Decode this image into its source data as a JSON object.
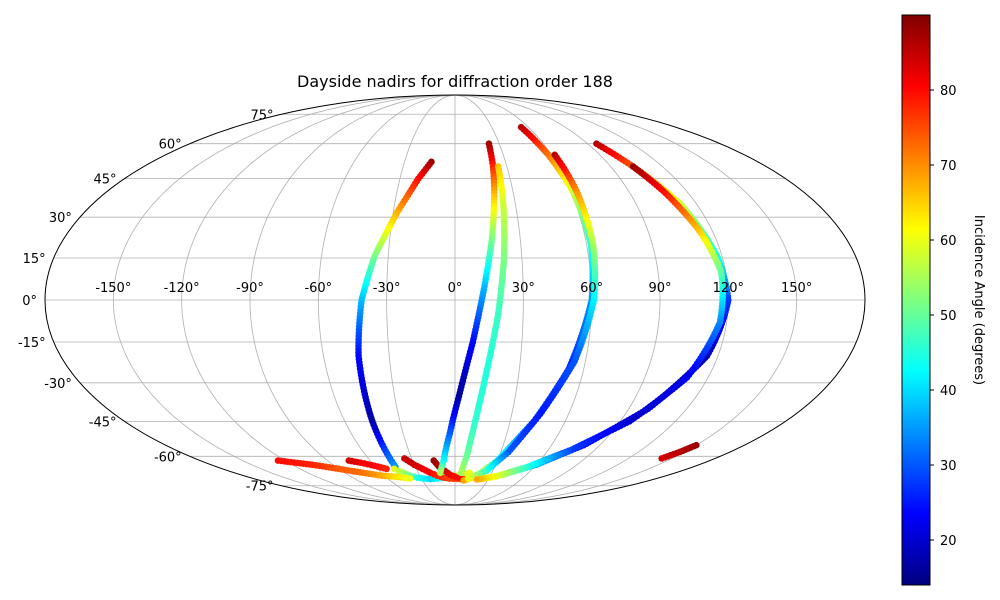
{
  "chart_data": {
    "type": "scatter",
    "projection": "mollweide",
    "title": "Dayside nadirs for diffraction order 188",
    "xlabel": "",
    "ylabel": "",
    "grid": true,
    "lon_tick_labels": [
      "-150°",
      "-120°",
      "-90°",
      "-60°",
      "-30°",
      "0°",
      "30°",
      "60°",
      "90°",
      "120°",
      "150°"
    ],
    "lat_tick_labels": [
      "-75°",
      "-60°",
      "-45°",
      "-30°",
      "-15°",
      "0°",
      "15°",
      "30°",
      "45°",
      "60°",
      "75°"
    ],
    "colorbar": {
      "label": "Incidence Angle (degrees)",
      "range": [
        14,
        90
      ],
      "ticks": [
        20,
        30,
        40,
        50,
        60,
        70,
        80
      ],
      "colormap": "jet"
    },
    "tracks": [
      {
        "points": [
          [
            -14,
            52,
            88
          ],
          [
            -20,
            45,
            80
          ],
          [
            -28,
            32,
            68
          ],
          [
            -36,
            16,
            52
          ],
          [
            -41,
            0,
            38
          ],
          [
            -44,
            -20,
            24
          ],
          [
            -45,
            -45,
            17
          ],
          [
            -45,
            -65,
            35
          ]
        ]
      },
      {
        "points": [
          [
            -47,
            -66,
            60
          ],
          [
            -45,
            -67,
            58
          ],
          [
            -42,
            -68,
            55
          ],
          [
            -38,
            -69.5,
            50
          ],
          [
            -33,
            -70.5,
            45
          ],
          [
            -28,
            -71,
            42
          ],
          [
            -22,
            -71.3,
            40
          ],
          [
            -16,
            -71,
            42
          ],
          [
            -10,
            -70.5,
            45
          ],
          [
            -4,
            -70,
            50
          ],
          [
            0,
            -69.5,
            55
          ],
          [
            6,
            -69,
            58
          ],
          [
            12,
            -68,
            60
          ]
        ]
      },
      {
        "points": [
          [
            -125,
            -62,
            80
          ],
          [
            -105,
            -64,
            78
          ],
          [
            -90,
            -66,
            74
          ],
          [
            -75,
            -68,
            72
          ],
          [
            -62,
            -69.5,
            68
          ],
          [
            -52,
            -70,
            64
          ],
          [
            -45,
            -70.5,
            62
          ],
          [
            -40,
            -71,
            60
          ]
        ]
      },
      {
        "points": [
          [
            -75,
            -62,
            84
          ],
          [
            -68,
            -63,
            82
          ],
          [
            -60,
            -64.5,
            80
          ],
          [
            -53,
            -66,
            78
          ]
        ]
      },
      {
        "points": [
          [
            -35,
            -61,
            85
          ],
          [
            -30,
            -64,
            84
          ],
          [
            -25,
            -66,
            82
          ],
          [
            -20,
            -68,
            80
          ],
          [
            -15,
            -69.5,
            78
          ],
          [
            -10,
            -70.5,
            77
          ],
          [
            -5,
            -71,
            76
          ],
          [
            2,
            -71.2,
            76
          ],
          [
            8,
            -71.3,
            76
          ]
        ]
      },
      {
        "points": [
          [
            -15,
            -62,
            88
          ],
          [
            -12,
            -65,
            86
          ],
          [
            -8,
            -67,
            84
          ],
          [
            -4,
            -69,
            82
          ],
          [
            0,
            -70,
            80
          ],
          [
            4,
            -70.5,
            80
          ]
        ]
      },
      {
        "points": [
          [
            23,
            60,
            88
          ],
          [
            22,
            50,
            78
          ],
          [
            20,
            38,
            66
          ],
          [
            17,
            22,
            52
          ],
          [
            13,
            5,
            38
          ],
          [
            8,
            -15,
            24
          ],
          [
            2,
            -35,
            16
          ],
          [
            -3,
            -50,
            30
          ],
          [
            -8,
            -62,
            42
          ],
          [
            -12,
            -68,
            55
          ]
        ]
      },
      {
        "points": [
          [
            25,
            50,
            66
          ],
          [
            24,
            35,
            58
          ],
          [
            22,
            15,
            52
          ],
          [
            19,
            -5,
            47
          ],
          [
            15,
            -25,
            45
          ],
          [
            11,
            -45,
            46
          ],
          [
            8,
            -60,
            50
          ],
          [
            5,
            -68,
            55
          ]
        ]
      },
      {
        "points": [
          [
            54,
            68,
            86
          ],
          [
            58,
            55,
            72
          ],
          [
            61,
            40,
            58
          ],
          [
            62,
            20,
            45
          ],
          [
            60,
            0,
            35
          ],
          [
            53,
            -25,
            26
          ],
          [
            43,
            -45,
            30
          ],
          [
            30,
            -62,
            45
          ],
          [
            18,
            -70,
            62
          ],
          [
            8,
            -72,
            68
          ]
        ]
      },
      {
        "points": [
          [
            62,
            55,
            86
          ],
          [
            63,
            40,
            70
          ],
          [
            63,
            20,
            55
          ],
          [
            61,
            0,
            42
          ],
          [
            55,
            -22,
            30
          ],
          [
            45,
            -42,
            25
          ],
          [
            35,
            -58,
            30
          ],
          [
            25,
            -67,
            45
          ],
          [
            12,
            -71,
            60
          ]
        ]
      },
      {
        "points": [
          [
            96,
            60,
            86
          ],
          [
            103,
            50,
            74
          ],
          [
            112,
            35,
            58
          ],
          [
            118,
            15,
            44
          ],
          [
            120,
            0,
            28
          ],
          [
            115,
            -20,
            18
          ],
          [
            100,
            -40,
            18
          ],
          [
            80,
            -55,
            24
          ],
          [
            60,
            -64,
            38
          ],
          [
            40,
            -69,
            55
          ],
          [
            25,
            -71,
            66
          ]
        ]
      },
      {
        "points": [
          [
            103,
            50,
            88
          ],
          [
            108,
            40,
            80
          ],
          [
            114,
            25,
            66
          ],
          [
            118,
            10,
            50
          ],
          [
            117,
            -8,
            34
          ],
          [
            110,
            -28,
            22
          ],
          [
            95,
            -45,
            20
          ],
          [
            75,
            -57,
            28
          ],
          [
            55,
            -65,
            45
          ],
          [
            35,
            -70,
            60
          ],
          [
            20,
            -71.5,
            68
          ]
        ]
      },
      {
        "points": [
          [
            150,
            -55,
            88
          ],
          [
            147,
            -58,
            86
          ],
          [
            143,
            -61,
            84
          ]
        ]
      }
    ]
  }
}
